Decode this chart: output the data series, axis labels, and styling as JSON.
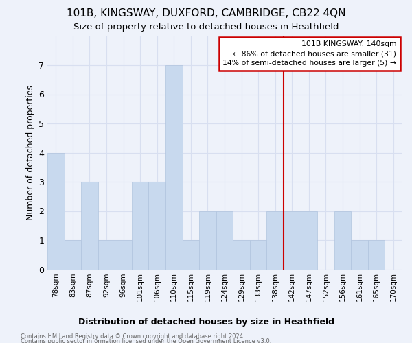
{
  "title": "101B, KINGSWAY, DUXFORD, CAMBRIDGE, CB22 4QN",
  "subtitle": "Size of property relative to detached houses in Heathfield",
  "xlabel": "Distribution of detached houses by size in Heathfield",
  "ylabel": "Number of detached properties",
  "footnote1": "Contains HM Land Registry data © Crown copyright and database right 2024.",
  "footnote2": "Contains public sector information licensed under the Open Government Licence v3.0.",
  "categories": [
    "78sqm",
    "83sqm",
    "87sqm",
    "92sqm",
    "96sqm",
    "101sqm",
    "106sqm",
    "110sqm",
    "115sqm",
    "119sqm",
    "124sqm",
    "129sqm",
    "133sqm",
    "138sqm",
    "142sqm",
    "147sqm",
    "152sqm",
    "156sqm",
    "161sqm",
    "165sqm",
    "170sqm"
  ],
  "values": [
    4,
    1,
    3,
    1,
    1,
    3,
    3,
    7,
    1,
    2,
    2,
    1,
    1,
    2,
    2,
    2,
    0,
    2,
    1,
    1,
    0
  ],
  "bar_color": "#c8d9ee",
  "bar_edge_color": "#b0c4de",
  "property_line_color": "#cc0000",
  "annotation_text": "101B KINGSWAY: 140sqm\n← 86% of detached houses are smaller (31)\n14% of semi-detached houses are larger (5) →",
  "annotation_box_color": "#cc0000",
  "ylim": [
    0,
    8
  ],
  "yticks": [
    0,
    1,
    2,
    3,
    4,
    5,
    6,
    7,
    8
  ],
  "grid_color": "#d8dff0",
  "background_color": "#eef2fa"
}
